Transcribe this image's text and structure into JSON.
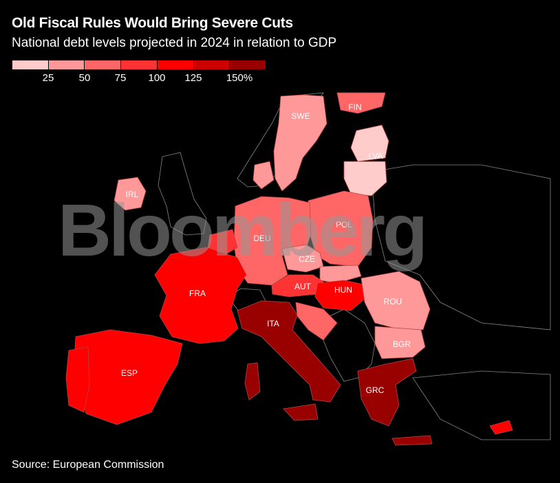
{
  "header": {
    "title": "Old Fiscal Rules Would Bring Severe Cuts",
    "subtitle": "National debt levels projected in 2024 in relation to GDP"
  },
  "legend": {
    "ticks": [
      "25",
      "50",
      "75",
      "100",
      "125",
      "150%"
    ],
    "colors": [
      "#ffcccc",
      "#ff9999",
      "#ff6666",
      "#ff3333",
      "#ff0000",
      "#cc0000",
      "#990000"
    ]
  },
  "map": {
    "countries": [
      {
        "code": "SWE",
        "color": "#ff9999"
      },
      {
        "code": "FIN",
        "color": "#ff6666"
      },
      {
        "code": "LVA",
        "color": "#ffcccc"
      },
      {
        "code": "IRL",
        "color": "#ff9999"
      },
      {
        "code": "POL",
        "color": "#ff6666"
      },
      {
        "code": "DEU",
        "color": "#ff6666"
      },
      {
        "code": "CZE",
        "color": "#ff9999"
      },
      {
        "code": "FRA",
        "color": "#ff0000"
      },
      {
        "code": "AUT",
        "color": "#ff3333"
      },
      {
        "code": "HUN",
        "color": "#ff3333"
      },
      {
        "code": "ROU",
        "color": "#ff9999"
      },
      {
        "code": "ITA",
        "color": "#990000"
      },
      {
        "code": "BGR",
        "color": "#ff9999"
      },
      {
        "code": "ESP",
        "color": "#ff0000"
      },
      {
        "code": "GRC",
        "color": "#990000"
      }
    ]
  },
  "watermark": "Bloomberg",
  "footer": {
    "source": "Source: European Commission"
  }
}
